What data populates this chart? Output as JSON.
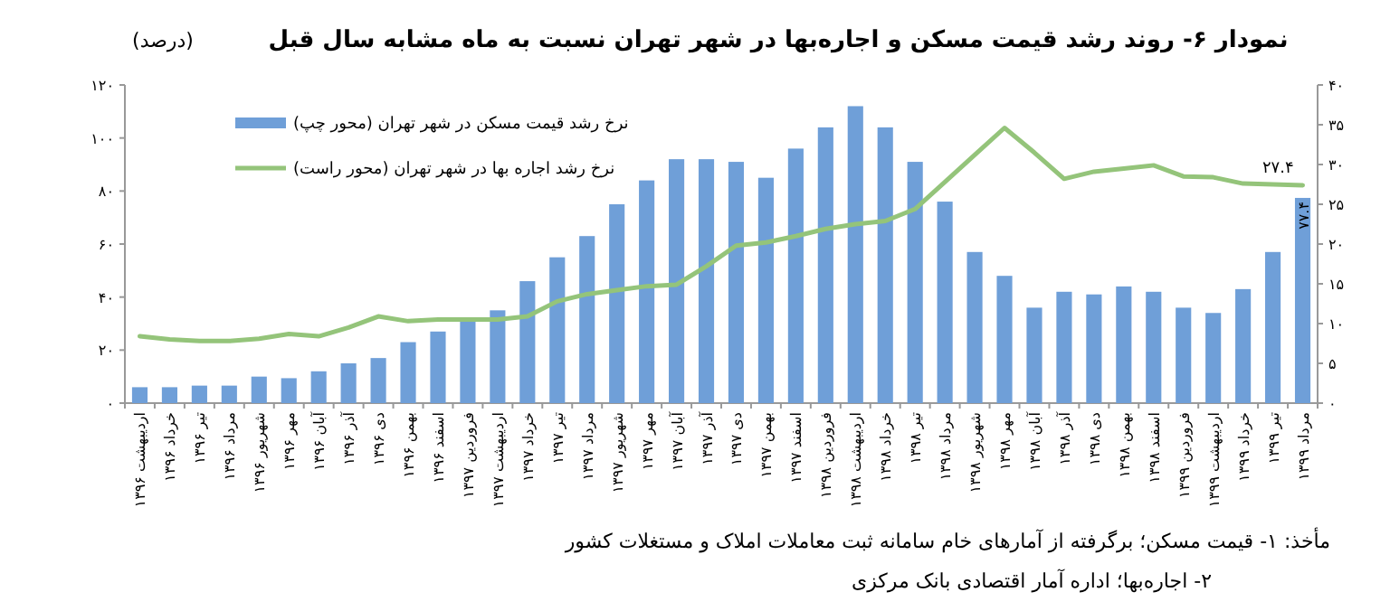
{
  "chart_data": {
    "type": "bar",
    "title": "نمودار ۶- روند رشد قیمت مسکن و اجاره‌بها در شهر تهران نسبت به ماه مشابه سال قبل",
    "ylabel": "(درصد)",
    "categories": [
      "اردیبهشت ۱۳۹۶",
      "خرداد ۱۳۹۶",
      "تیر ۱۳۹۶",
      "مرداد ۱۳۹۶",
      "شهریور ۱۳۹۶",
      "مهر ۱۳۹۶",
      "آبان ۱۳۹۶",
      "آذر ۱۳۹۶",
      "دی ۱۳۹۶",
      "بهمن ۱۳۹۶",
      "اسفند ۱۳۹۶",
      "فروردین ۱۳۹۷",
      "اردیبهشت ۱۳۹۷",
      "خرداد ۱۳۹۷",
      "تیر ۱۳۹۷",
      "مرداد ۱۳۹۷",
      "شهریور ۱۳۹۷",
      "مهر ۱۳۹۷",
      "آبان ۱۳۹۷",
      "آذر ۱۳۹۷",
      "دی ۱۳۹۷",
      "بهمن ۱۳۹۷",
      "اسفند ۱۳۹۷",
      "فروردین ۱۳۹۸",
      "اردیبهشت ۱۳۹۸",
      "خرداد ۱۳۹۸",
      "تیر ۱۳۹۸",
      "مرداد ۱۳۹۸",
      "شهریور ۱۳۹۸",
      "مهر ۱۳۹۸",
      "آبان ۱۳۹۸",
      "آذر ۱۳۹۸",
      "دی ۱۳۹۸",
      "بهمن ۱۳۹۸",
      "اسفند ۱۳۹۸",
      "فروردین ۱۳۹۹",
      "اردیبهشت ۱۳۹۹",
      "خرداد ۱۳۹۹",
      "تیر ۱۳۹۹",
      "مرداد ۱۳۹۹"
    ],
    "series": [
      {
        "name": "نرخ رشد قیمت مسکن در شهر تهران (محور چپ)",
        "color": "#6f9fd8",
        "values": [
          6,
          6,
          6.6,
          6.6,
          10,
          9.4,
          12,
          15,
          17,
          23,
          27,
          31,
          35,
          46,
          55,
          63,
          75,
          84,
          92,
          92,
          91,
          85,
          96,
          104,
          112,
          104,
          91,
          76,
          57,
          48,
          36,
          42,
          41,
          44,
          42,
          36,
          34,
          43,
          57,
          77.4
        ],
        "value_labels": [
          null,
          null,
          null,
          null,
          null,
          null,
          null,
          null,
          null,
          null,
          null,
          null,
          null,
          null,
          null,
          null,
          null,
          null,
          null,
          null,
          null,
          null,
          null,
          null,
          null,
          null,
          null,
          null,
          null,
          null,
          null,
          null,
          null,
          null,
          null,
          null,
          null,
          null,
          null,
          "۷۷.۴"
        ]
      },
      {
        "name": "نرخ رشد اجاره بها در شهر تهران (محور راست)",
        "type": "line",
        "axis": "y2",
        "color": "#94c47a",
        "values": [
          8.4,
          8,
          7.8,
          7.8,
          8.1,
          8.7,
          8.4,
          9.5,
          10.9,
          10.3,
          10.5,
          10.5,
          10.5,
          10.9,
          12.8,
          13.7,
          14.2,
          14.7,
          14.9,
          17.2,
          19.8,
          20.2,
          21,
          21.9,
          22.5,
          22.9,
          24.4,
          27.8,
          31.2,
          34.6,
          31.5,
          28.2,
          29.1,
          29.5,
          29.9,
          28.5,
          28.4,
          27.6,
          27.5,
          27.4
        ],
        "value_labels": [
          null,
          null,
          null,
          null,
          null,
          null,
          null,
          null,
          null,
          null,
          null,
          null,
          null,
          null,
          null,
          null,
          null,
          null,
          null,
          null,
          null,
          null,
          null,
          null,
          null,
          null,
          null,
          null,
          null,
          null,
          null,
          null,
          null,
          null,
          null,
          null,
          null,
          null,
          null,
          "۲۷.۴"
        ]
      }
    ],
    "ylim": [
      0,
      120
    ],
    "yticks": [
      {
        "value": 0,
        "label": "۰"
      },
      {
        "value": 20,
        "label": "۲۰"
      },
      {
        "value": 40,
        "label": "۴۰"
      },
      {
        "value": 60,
        "label": "۶۰"
      },
      {
        "value": 80,
        "label": "۸۰"
      },
      {
        "value": 100,
        "label": "۱۰۰"
      },
      {
        "value": 120,
        "label": "۱۲۰"
      }
    ],
    "y2lim": [
      0,
      40
    ],
    "y2ticks": [
      {
        "value": 0,
        "label": "۰"
      },
      {
        "value": 5,
        "label": "۵"
      },
      {
        "value": 10,
        "label": "۱۰"
      },
      {
        "value": 15,
        "label": "۱۵"
      },
      {
        "value": 20,
        "label": "۲۰"
      },
      {
        "value": 25,
        "label": "۲۵"
      },
      {
        "value": 30,
        "label": "۳۰"
      },
      {
        "value": 35,
        "label": "۳۵"
      },
      {
        "value": 40,
        "label": "۴۰"
      }
    ],
    "legend": "top left",
    "annotations": [
      "مأخذ: ۱- قیمت مسکن؛ برگرفته از آمارهای خام سامانه ثبت معاملات املاک و مستغلات کشور",
      "۲- اجاره‌بها؛ اداره آمار اقتصادی بانک مرکزی"
    ]
  }
}
